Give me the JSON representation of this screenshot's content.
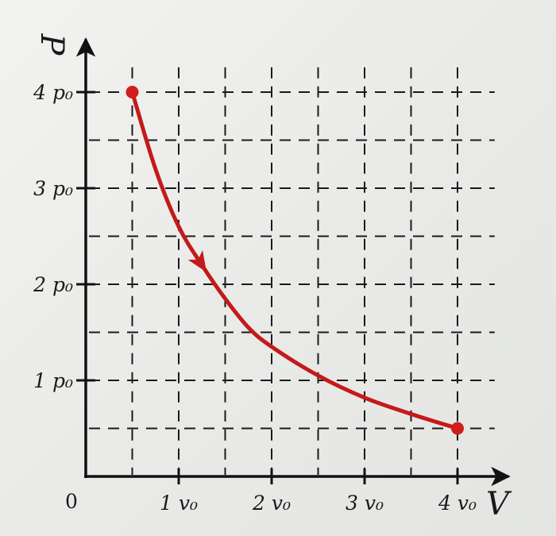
{
  "chart_data": {
    "type": "line",
    "title": "",
    "xlabel": "V",
    "ylabel": "P",
    "origin_label": "0",
    "xlim": [
      0,
      4.4
    ],
    "ylim": [
      0,
      4.4
    ],
    "grid": true,
    "grid_step": 0.5,
    "x_ticks": [
      {
        "value": 1,
        "label": "1 v₀"
      },
      {
        "value": 2,
        "label": "2 v₀"
      },
      {
        "value": 3,
        "label": "3 v₀"
      },
      {
        "value": 4,
        "label": "4 v₀"
      }
    ],
    "y_ticks": [
      {
        "value": 1,
        "label": "1 p₀"
      },
      {
        "value": 2,
        "label": "2 p₀"
      },
      {
        "value": 3,
        "label": "3 p₀"
      },
      {
        "value": 4,
        "label": "4 p₀"
      }
    ],
    "series": [
      {
        "color": "#c41a1a",
        "start": {
          "x": 0.5,
          "y": 4.0
        },
        "end": {
          "x": 4.0,
          "y": 0.5
        },
        "x": [
          0.5,
          0.75,
          1.0,
          1.25,
          1.5,
          1.75,
          2.0,
          2.5,
          3.0,
          3.5,
          4.0
        ],
        "y": [
          4.0,
          3.2,
          2.6,
          2.2,
          1.85,
          1.55,
          1.35,
          1.05,
          0.82,
          0.65,
          0.5
        ],
        "direction_arrow_at_x": 1.3
      }
    ]
  }
}
